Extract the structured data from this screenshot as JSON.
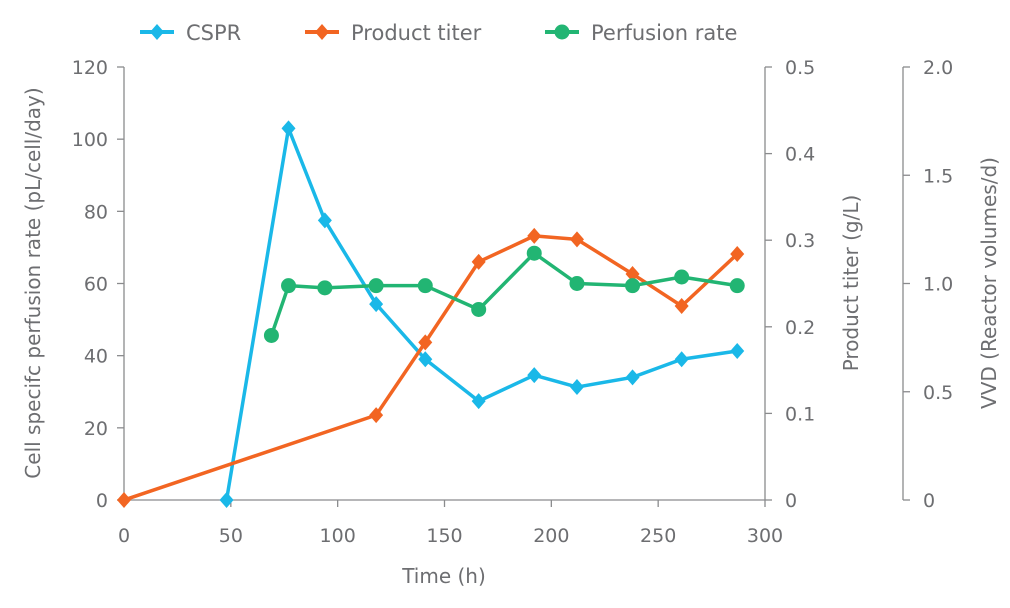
{
  "chart_data": {
    "type": "line",
    "xlabel": "Time (h)",
    "xlim": [
      0,
      300
    ],
    "xticks": [
      0,
      50,
      100,
      150,
      200,
      250,
      300
    ],
    "axes": {
      "left": {
        "label": "Cell specifc perfusion rate (pL/cell/day)",
        "lim": [
          0,
          120
        ],
        "ticks": [
          "0",
          "20",
          "40",
          "60",
          "80",
          "100",
          "120"
        ]
      },
      "right1": {
        "label": "Product titer (g/L)",
        "lim": [
          0,
          0.5
        ],
        "ticks": [
          "0",
          "0.1",
          "0.2",
          "0.3",
          "0.4",
          "0.5"
        ]
      },
      "right2": {
        "label": "VVD (Reactor volumes/d)",
        "lim": [
          0,
          2.0
        ],
        "ticks": [
          "0",
          "0.5",
          "1.0",
          "1.5",
          "2.0"
        ]
      }
    },
    "legend_placement": "top",
    "grid": false,
    "series": [
      {
        "name": "CSPR",
        "axis": "left",
        "color": "#1ab8e8",
        "marker": "diamond",
        "x": [
          48,
          77,
          94,
          118,
          141,
          166,
          192,
          212,
          238,
          261,
          287
        ],
        "y": [
          0,
          103,
          77.5,
          54.3,
          39,
          27.4,
          34.6,
          31.3,
          34,
          39,
          41.3
        ]
      },
      {
        "name": "Product titer",
        "axis": "right1",
        "color": "#f26522",
        "marker": "diamond",
        "x": [
          0,
          118,
          141,
          166,
          192,
          212,
          238,
          261,
          287
        ],
        "y": [
          0,
          0.098,
          0.182,
          0.275,
          0.305,
          0.301,
          0.261,
          0.224,
          0.284
        ]
      },
      {
        "name": "Perfusion rate",
        "axis": "right2",
        "color": "#22b573",
        "marker": "circle",
        "x": [
          69,
          77,
          94,
          118,
          141,
          166,
          192,
          212,
          238,
          261,
          287
        ],
        "y": [
          0.76,
          0.99,
          0.98,
          0.99,
          0.99,
          0.88,
          1.14,
          1.0,
          0.99,
          1.03,
          0.99
        ]
      }
    ]
  }
}
